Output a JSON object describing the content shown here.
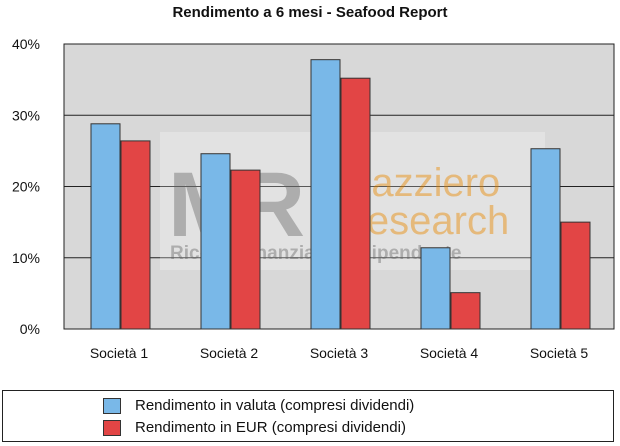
{
  "chart_data": {
    "type": "bar",
    "title": "Rendimento a 6 mesi - Seafood Report",
    "categories": [
      "Società 1",
      "Società 2",
      "Società 3",
      "Società 4",
      "Società 5"
    ],
    "series": [
      {
        "name": "Rendimento in valuta (compresi dividendi)",
        "color": "#79b8e8",
        "values": [
          28.8,
          24.6,
          37.8,
          11.4,
          25.3
        ]
      },
      {
        "name": "Rendimento in EUR (compresi dividendi)",
        "color": "#e24545",
        "values": [
          26.4,
          22.3,
          35.2,
          5.1,
          15.0
        ]
      }
    ],
    "ylim": [
      0,
      40
    ],
    "yticks": [
      "0%",
      "10%",
      "20%",
      "30%",
      "40%"
    ],
    "grid": true,
    "legend_placement": "bottom",
    "plot_background": "#d8d8d8"
  },
  "watermark": {
    "logo_letters": "MR",
    "name_line1": "Mazziero",
    "name_line2": "Research",
    "tagline": "Ricerca finanziaria indipendente"
  }
}
